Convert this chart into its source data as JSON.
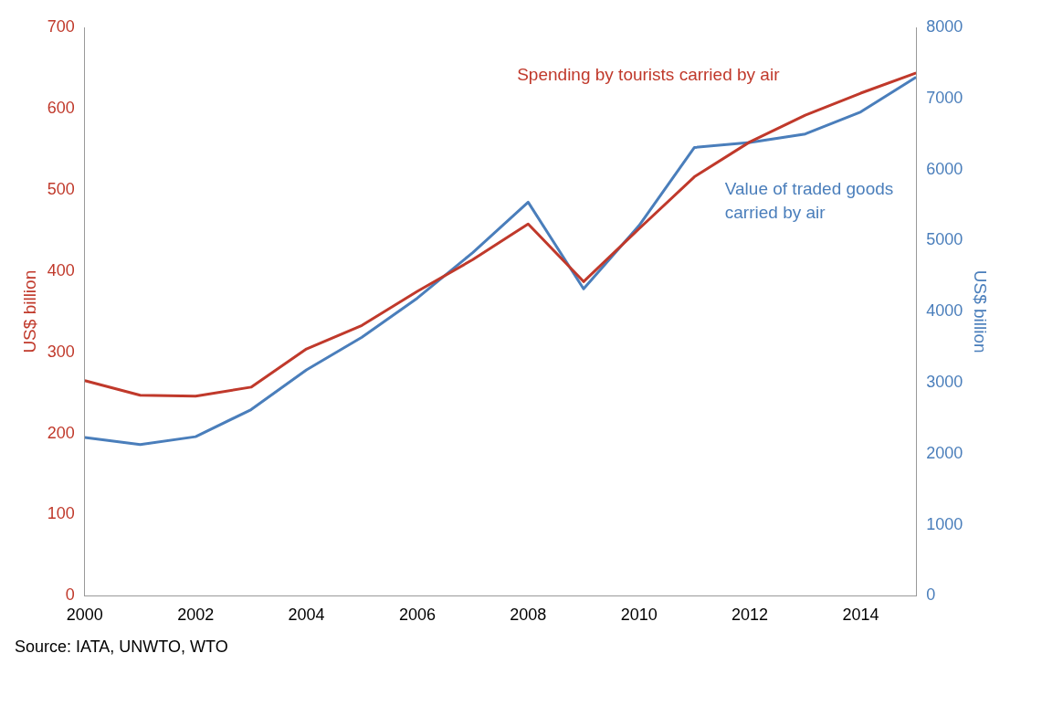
{
  "chart_data": {
    "type": "line",
    "x": [
      2000,
      2001,
      2002,
      2003,
      2004,
      2005,
      2006,
      2007,
      2008,
      2009,
      2010,
      2011,
      2012,
      2013,
      2014,
      2015
    ],
    "series": [
      {
        "name": "Spending by tourists carried by air",
        "color": "#c0392b",
        "values": [
          265,
          247,
          246,
          257,
          304,
          333,
          375,
          414,
          458,
          387,
          452,
          516,
          559,
          592,
          619,
          644
        ]
      },
      {
        "name": "Value of traded goods carried by air",
        "color": "#4a7ebb",
        "axis": "y2",
        "values": [
          2230,
          2130,
          2240,
          2620,
          3180,
          3640,
          4190,
          4830,
          5540,
          4320,
          5210,
          6310,
          6380,
          6500,
          6810,
          7300
        ]
      }
    ],
    "xlim": [
      2000,
      2015
    ],
    "xticks": [
      2000,
      2002,
      2004,
      2006,
      2008,
      2010,
      2012,
      2014
    ],
    "ylim": [
      0,
      700
    ],
    "yticks": [
      0,
      100,
      200,
      300,
      400,
      500,
      600,
      700
    ],
    "y2lim": [
      0,
      8000
    ],
    "y2ticks": [
      0,
      1000,
      2000,
      3000,
      4000,
      5000,
      6000,
      7000,
      8000
    ],
    "ylabel": "US$ billion",
    "y2label": "US$ billion",
    "grid": false,
    "legend": false,
    "marker": "none",
    "line_style": "solid",
    "annotations": [
      "Source: IATA, UNWTO, WTO"
    ]
  }
}
